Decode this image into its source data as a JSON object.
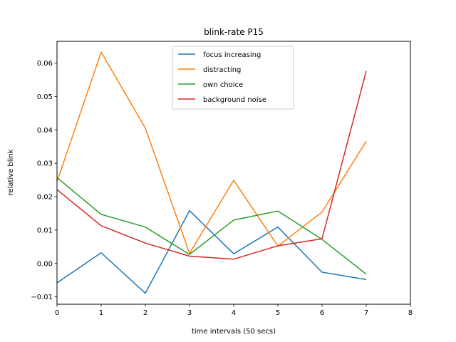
{
  "chart_data": {
    "type": "line",
    "title": "blink-rate P15",
    "xlabel": "time intervals (50 secs)",
    "ylabel": "relative blink",
    "xlim": [
      0,
      8
    ],
    "ylim": [
      -0.0122,
      0.0665
    ],
    "xticks": [
      0,
      1,
      2,
      3,
      4,
      5,
      6,
      7,
      8
    ],
    "yticks": [
      -0.01,
      0.0,
      0.01,
      0.02,
      0.03,
      0.04,
      0.05,
      0.06
    ],
    "ytick_labels": [
      "−0.01",
      "0.00",
      "0.01",
      "0.02",
      "0.03",
      "0.04",
      "0.05",
      "0.06"
    ],
    "grid": false,
    "legend_position": "top-center",
    "x": [
      0,
      1,
      2,
      3,
      4,
      5,
      6,
      7
    ],
    "series": [
      {
        "name": "focus increasing",
        "color": "#1f77b4",
        "values": [
          -0.0058,
          0.0032,
          -0.0089,
          0.0158,
          0.0029,
          0.0109,
          -0.0026,
          -0.0048
        ]
      },
      {
        "name": "distracting",
        "color": "#ff7f0e",
        "values": [
          0.0245,
          0.0633,
          0.0405,
          0.003,
          0.0249,
          0.0052,
          0.0154,
          0.0366
        ]
      },
      {
        "name": "own choice",
        "color": "#2ca02c",
        "values": [
          0.0257,
          0.0147,
          0.0109,
          0.0027,
          0.013,
          0.0157,
          0.0072,
          -0.0032
        ]
      },
      {
        "name": "background noise",
        "color": "#d62728",
        "values": [
          0.0221,
          0.0113,
          0.0061,
          0.0022,
          0.0013,
          0.0053,
          0.0074,
          0.0576
        ]
      }
    ]
  }
}
